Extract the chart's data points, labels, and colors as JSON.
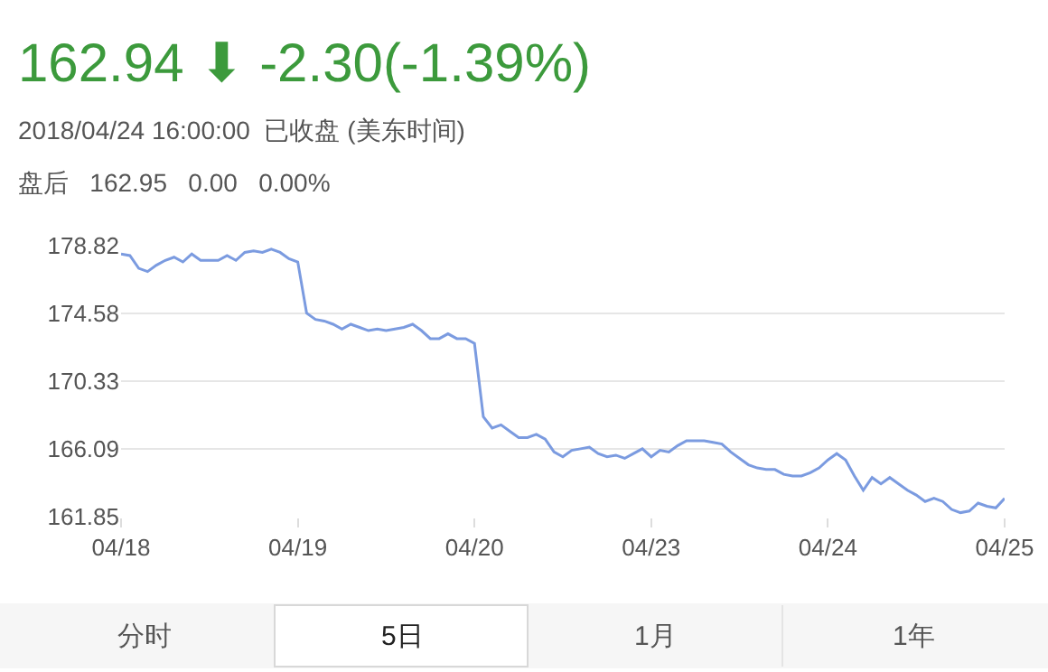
{
  "chart_data": {
    "type": "line",
    "title": "162.94 ⬇ -2.30(-1.39%)",
    "subtitle": "2018/04/24 16:00:00  已收盘 (美东时间)",
    "annotations": [
      "盘后   162.95   0.00   0.00%",
      "分时",
      "5日",
      "1月",
      "1年"
    ],
    "categories": [
      "04/18",
      null,
      null,
      null,
      null,
      null,
      null,
      null,
      null,
      null,
      null,
      null,
      null,
      null,
      null,
      null,
      null,
      null,
      null,
      null,
      "04/19",
      null,
      null,
      null,
      null,
      null,
      null,
      null,
      null,
      null,
      null,
      null,
      null,
      null,
      null,
      null,
      null,
      null,
      null,
      null,
      "04/20",
      null,
      null,
      null,
      null,
      null,
      null,
      null,
      null,
      null,
      null,
      null,
      null,
      null,
      null,
      null,
      null,
      null,
      null,
      null,
      "04/23",
      null,
      null,
      null,
      null,
      null,
      null,
      null,
      null,
      null,
      null,
      null,
      null,
      null,
      null,
      null,
      null,
      null,
      null,
      null,
      "04/24",
      null,
      null,
      null,
      null,
      null,
      null,
      null,
      null,
      null,
      null,
      null,
      null,
      null,
      null,
      null,
      null,
      null,
      null,
      null,
      "04/25"
    ],
    "series": [
      {
        "color": "#7b9be0",
        "values": [
          178.3,
          178.2,
          177.4,
          177.2,
          177.6,
          177.9,
          178.1,
          177.8,
          178.3,
          177.9,
          177.9,
          177.9,
          178.2,
          177.9,
          178.4,
          178.5,
          178.4,
          178.6,
          178.4,
          178.0,
          177.8,
          174.6,
          174.2,
          174.1,
          173.9,
          173.6,
          173.9,
          173.7,
          173.5,
          173.6,
          173.5,
          173.6,
          173.7,
          173.9,
          173.5,
          173.0,
          173.0,
          173.3,
          173.0,
          173.0,
          172.7,
          168.1,
          167.4,
          167.6,
          167.2,
          166.8,
          166.8,
          167.0,
          166.7,
          165.9,
          165.6,
          166.0,
          166.1,
          166.2,
          165.8,
          165.6,
          165.7,
          165.5,
          165.8,
          166.1,
          165.6,
          166.0,
          165.9,
          166.3,
          166.6,
          166.6,
          166.6,
          166.5,
          166.4,
          165.9,
          165.5,
          165.1,
          164.9,
          164.8,
          164.8,
          164.5,
          164.4,
          164.4,
          164.6,
          164.9,
          165.4,
          165.8,
          165.4,
          164.4,
          163.5,
          164.3,
          163.9,
          164.3,
          163.9,
          163.5,
          163.2,
          162.8,
          163.0,
          162.8,
          162.3,
          162.1,
          162.2,
          162.7,
          162.5,
          162.4,
          163.0
        ]
      }
    ],
    "ylim": [
      161.85,
      178.82
    ],
    "yticks": [
      161.85,
      166.09,
      170.33,
      174.58,
      178.82
    ],
    "grid": "y",
    "marker": "none",
    "line_style": "solid"
  }
}
